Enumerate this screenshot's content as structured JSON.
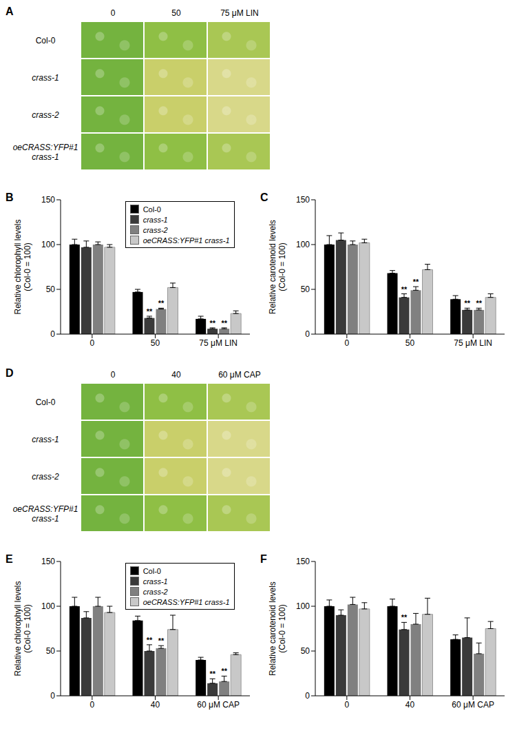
{
  "photos": [
    {
      "panel": "A",
      "columns": [
        "0",
        "50",
        "75 μM LIN"
      ],
      "rows": [
        [
          "Col-0"
        ],
        [
          "crass-1"
        ],
        [
          "crass-2"
        ],
        [
          "oeCRASS:YFP#1",
          "crass-1"
        ]
      ]
    },
    {
      "panel": "D",
      "columns": [
        "0",
        "40",
        "60 μM CAP"
      ],
      "rows": [
        [
          "Col-0"
        ],
        [
          "crass-1"
        ],
        [
          "crass-2"
        ],
        [
          "oeCRASS:YFP#1",
          "crass-1"
        ]
      ]
    }
  ],
  "chart_data": [
    {
      "panel": "B",
      "type": "bar",
      "y_label": [
        "Relative chlorophyll levels",
        "(Col-0 = 100)"
      ],
      "categories": [
        "0",
        "50",
        "75 μM LIN"
      ],
      "ylim": [
        0,
        150
      ],
      "yticks": [
        0,
        50,
        100,
        150
      ],
      "legend": "top",
      "series": [
        {
          "name": "Col-0",
          "color": "#000000",
          "values": [
            100,
            47,
            17
          ],
          "errors": [
            6,
            3,
            3
          ],
          "significance": [
            null,
            null,
            null
          ]
        },
        {
          "name": "crass-1",
          "color": "#3a3a3a",
          "values": [
            97,
            18,
            6
          ],
          "errors": [
            7,
            2,
            1
          ],
          "significance": [
            null,
            "**",
            "**"
          ]
        },
        {
          "name": "crass-2",
          "color": "#808080",
          "values": [
            100,
            28,
            6
          ],
          "errors": [
            3,
            1,
            1
          ],
          "significance": [
            null,
            "**",
            "**"
          ]
        },
        {
          "name": "oeCRASS:YFP#1 crass-1",
          "color": "#c8c8c8",
          "values": [
            97,
            52,
            23
          ],
          "errors": [
            3,
            5,
            3
          ],
          "significance": [
            null,
            null,
            null
          ]
        }
      ]
    },
    {
      "panel": "C",
      "type": "bar",
      "y_label": [
        "Relative carotenoid levels",
        "(Col-0 = 100)"
      ],
      "categories": [
        "0",
        "50",
        "75 μM LIN"
      ],
      "ylim": [
        0,
        150
      ],
      "yticks": [
        0,
        50,
        100,
        150
      ],
      "series": [
        {
          "name": "Col-0",
          "color": "#000000",
          "values": [
            100,
            68,
            39
          ],
          "errors": [
            10,
            3,
            4
          ],
          "significance": [
            null,
            null,
            null
          ]
        },
        {
          "name": "crass-1",
          "color": "#3a3a3a",
          "values": [
            105,
            41,
            27
          ],
          "errors": [
            8,
            4,
            2
          ],
          "significance": [
            null,
            "**",
            "**"
          ]
        },
        {
          "name": "crass-2",
          "color": "#808080",
          "values": [
            100,
            49,
            27
          ],
          "errors": [
            4,
            4,
            2
          ],
          "significance": [
            null,
            "**",
            "**"
          ]
        },
        {
          "name": "oeCRASS:YFP#1 crass-1",
          "color": "#c8c8c8",
          "values": [
            102,
            72,
            41
          ],
          "errors": [
            4,
            6,
            4
          ],
          "significance": [
            null,
            null,
            null
          ]
        }
      ]
    },
    {
      "panel": "E",
      "type": "bar",
      "y_label": [
        "Relative chlorophyll levels",
        "(Col-0 = 100)"
      ],
      "categories": [
        "0",
        "40",
        "60 μM CAP"
      ],
      "ylim": [
        0,
        150
      ],
      "yticks": [
        0,
        50,
        100,
        150
      ],
      "legend": "top",
      "series": [
        {
          "name": "Col-0",
          "color": "#000000",
          "values": [
            100,
            84,
            40
          ],
          "errors": [
            10,
            5,
            3
          ],
          "significance": [
            null,
            null,
            null
          ]
        },
        {
          "name": "crass-1",
          "color": "#3a3a3a",
          "values": [
            87,
            50,
            14
          ],
          "errors": [
            7,
            7,
            5
          ],
          "significance": [
            null,
            "**",
            "**"
          ]
        },
        {
          "name": "crass-2",
          "color": "#808080",
          "values": [
            100,
            53,
            16
          ],
          "errors": [
            10,
            3,
            6
          ],
          "significance": [
            null,
            "**",
            "**"
          ]
        },
        {
          "name": "oeCRASS:YFP#1 crass-1",
          "color": "#c8c8c8",
          "values": [
            93,
            74,
            46
          ],
          "errors": [
            7,
            16,
            2
          ],
          "significance": [
            null,
            null,
            null
          ]
        }
      ]
    },
    {
      "panel": "F",
      "type": "bar",
      "y_label": [
        "Relative carotenoid levels",
        "(Col-0 = 100)"
      ],
      "categories": [
        "0",
        "40",
        "60 μM CAP"
      ],
      "ylim": [
        0,
        150
      ],
      "yticks": [
        0,
        50,
        100,
        150
      ],
      "series": [
        {
          "name": "Col-0",
          "color": "#000000",
          "values": [
            100,
            100,
            63
          ],
          "errors": [
            7,
            8,
            5
          ],
          "significance": [
            null,
            null,
            null
          ]
        },
        {
          "name": "crass-1",
          "color": "#3a3a3a",
          "values": [
            90,
            74,
            65
          ],
          "errors": [
            6,
            8,
            22
          ],
          "significance": [
            null,
            "**",
            null
          ]
        },
        {
          "name": "crass-2",
          "color": "#808080",
          "values": [
            102,
            80,
            47
          ],
          "errors": [
            8,
            12,
            12
          ],
          "significance": [
            null,
            null,
            null
          ]
        },
        {
          "name": "oeCRASS:YFP#1 crass-1",
          "color": "#c8c8c8",
          "values": [
            97,
            91,
            75
          ],
          "errors": [
            7,
            18,
            8
          ],
          "significance": [
            null,
            null,
            null
          ]
        }
      ]
    }
  ]
}
